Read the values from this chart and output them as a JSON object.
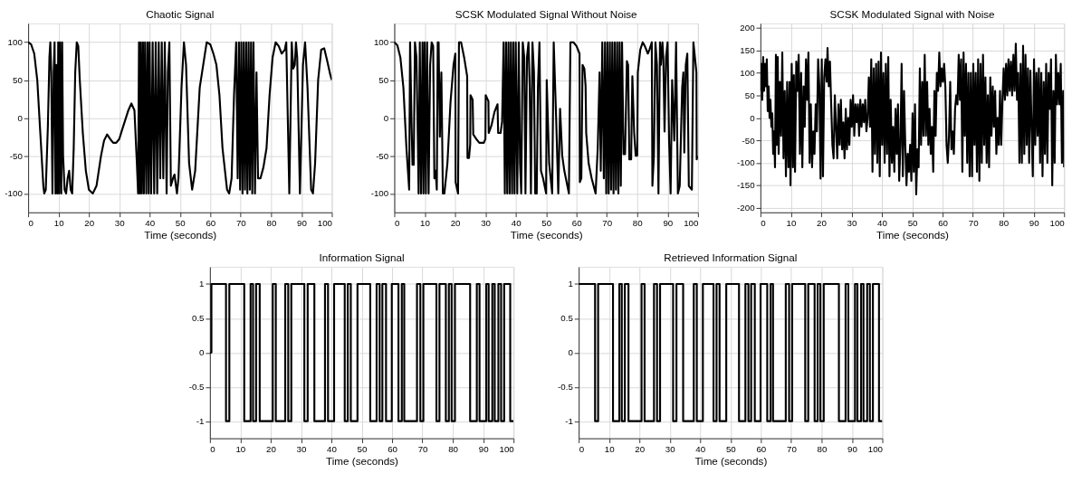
{
  "chart_data": [
    {
      "type": "line",
      "title": "Chaotic Signal",
      "xlabel": "Time (seconds)",
      "xlim": [
        0,
        100
      ],
      "xticks": [
        0,
        10,
        20,
        30,
        40,
        50,
        60,
        70,
        80,
        90,
        100
      ],
      "ylim": [
        -125,
        125
      ],
      "yticks": [
        -100,
        -50,
        0,
        50,
        100
      ],
      "grid": true,
      "line_style": "solid",
      "x": [
        0,
        1,
        2,
        3,
        4,
        5,
        5.3,
        5.8,
        6.5,
        7,
        7.3,
        7.6,
        8,
        8.4,
        8.7,
        9,
        9.3,
        9.6,
        9.9,
        10.2,
        10.5,
        10.9,
        11.2,
        11.5,
        12,
        12.5,
        13,
        13.5,
        14,
        14.5,
        15,
        15.5,
        16,
        16.5,
        17,
        18,
        19,
        20,
        21.3,
        22.5,
        24,
        25,
        26,
        27,
        28,
        29,
        30,
        31,
        33,
        34,
        35,
        35.8,
        36.2,
        36.5,
        36.8,
        37.1,
        37.4,
        37.8,
        38.1,
        38.5,
        38.9,
        39.3,
        39.7,
        40,
        40.5,
        41,
        41.5,
        42,
        42.5,
        43,
        43.5,
        44,
        44.5,
        45,
        45.6,
        46,
        46.5,
        47,
        47.7,
        48.2,
        49,
        49.5,
        50.5,
        51.3,
        52,
        53,
        54,
        55,
        56.5,
        58.8,
        60,
        61,
        62,
        63,
        64,
        65.5,
        66.2,
        67,
        67.8,
        68.5,
        69,
        69.4,
        69.8,
        70.2,
        70.6,
        71,
        71.4,
        71.8,
        72.2,
        72.6,
        73,
        73.4,
        73.8,
        74.2,
        74.7,
        75.2,
        75.7,
        76.5,
        77.5,
        78.5,
        79.5,
        80.5,
        81.5,
        82.5,
        83.5,
        84.5,
        85,
        85.5,
        86,
        86.8,
        87.3,
        87.8,
        88.2,
        88.6,
        89,
        89.5,
        90.5,
        91.2,
        92,
        93.2,
        93.8,
        94.5,
        95.5,
        96.5,
        97.5,
        98.5,
        99.5,
        100
      ],
      "series": [
        {
          "color": "#000000",
          "values": [
            100,
            97,
            85,
            50,
            -20,
            -90,
            -100,
            -95,
            -10,
            80,
            100,
            60,
            -100,
            60,
            100,
            -100,
            70,
            -100,
            100,
            -100,
            100,
            -100,
            100,
            -50,
            -95,
            -100,
            -80,
            -70,
            -95,
            -100,
            -40,
            60,
            100,
            95,
            50,
            -20,
            -70,
            -95,
            -100,
            -90,
            -50,
            -30,
            -22,
            -28,
            -33,
            -33,
            -28,
            -15,
            10,
            19,
            10,
            -60,
            -100,
            100,
            -100,
            100,
            -100,
            100,
            -100,
            100,
            -100,
            100,
            -100,
            100,
            -100,
            100,
            -100,
            100,
            -100,
            100,
            -80,
            100,
            -80,
            100,
            -100,
            60,
            100,
            -90,
            -80,
            -75,
            -100,
            -80,
            40,
            100,
            70,
            -60,
            -95,
            -70,
            40,
            100,
            97,
            85,
            70,
            30,
            -40,
            -95,
            -100,
            -80,
            30,
            100,
            -80,
            100,
            -95,
            100,
            -100,
            100,
            -95,
            100,
            -100,
            100,
            -95,
            100,
            -100,
            100,
            -100,
            60,
            -80,
            -80,
            -65,
            -40,
            30,
            80,
            100,
            95,
            85,
            90,
            100,
            0,
            -100,
            100,
            65,
            70,
            100,
            80,
            0,
            -100,
            70,
            100,
            40,
            -95,
            -100,
            -60,
            50,
            90,
            92,
            75,
            57,
            50
          ]
        }
      ]
    },
    {
      "type": "line",
      "title": "SCSK Modulated Signal Without Noise",
      "xlabel": "Time (seconds)",
      "xlim": [
        0,
        100
      ],
      "xticks": [
        0,
        10,
        20,
        30,
        40,
        50,
        60,
        70,
        80,
        90,
        100
      ],
      "ylim": [
        -125,
        125
      ],
      "yticks": [
        -100,
        -50,
        0,
        50,
        100
      ],
      "grid": true,
      "line_style": "solid",
      "x": [
        0,
        1,
        2,
        3,
        4,
        4.9,
        5.2,
        5.7,
        6,
        6.4,
        6.8,
        7.3,
        7.8,
        8,
        8.4,
        8.8,
        9.3,
        9.6,
        10,
        10.4,
        10.8,
        11.3,
        11.8,
        12.3,
        12.8,
        13.2,
        13.6,
        14,
        14.3,
        14.6,
        15,
        15.5,
        16,
        16.5,
        17.5,
        18.5,
        19.5,
        20.1,
        20.2,
        21,
        21.3,
        22,
        23,
        24,
        24.1,
        24.6,
        25,
        25.1,
        25.8,
        26,
        27,
        28,
        29.5,
        30,
        30.1,
        31,
        31.1,
        32,
        33,
        34,
        34.2,
        35,
        35.5,
        36,
        36.4,
        36.8,
        37.2,
        37.6,
        38,
        38.4,
        38.8,
        39.2,
        39.6,
        40,
        40.5,
        41,
        41.4,
        41.8,
        42.3,
        42.8,
        43.2,
        43.7,
        44.2,
        44.6,
        45,
        45.5,
        46,
        46.4,
        46.9,
        47.3,
        47.8,
        48.3,
        49,
        50,
        50.2,
        51,
        52,
        52.5,
        53.3,
        54,
        54.6,
        55.3,
        56,
        57,
        57.5,
        58,
        59,
        60,
        61,
        61.1,
        61.6,
        62,
        62.6,
        63,
        63.2,
        64,
        65,
        66.3,
        67,
        67.6,
        68,
        68.5,
        69,
        69.4,
        69.8,
        70.2,
        70.6,
        71,
        71.4,
        71.8,
        72.2,
        72.6,
        73,
        73.4,
        73.8,
        74.2,
        74.6,
        75,
        75.5,
        76,
        76.6,
        77,
        77.4,
        78,
        78.4,
        79,
        79.5,
        80,
        80.2,
        81,
        81.8,
        82.5,
        83.5,
        84,
        84.8,
        85,
        85.5,
        86,
        86.5,
        87,
        87.5,
        87.8,
        88.3,
        88.6,
        89,
        89.5,
        90,
        90.5,
        91,
        91.5,
        92.2,
        92.8,
        93.4,
        94,
        94.8,
        95.2,
        95.5,
        96,
        96.5,
        97,
        98,
        98.5,
        99.5,
        99.6,
        100
      ],
      "series": [
        {
          "color": "#000000",
          "values": [
            100,
            96,
            80,
            40,
            -40,
            -95,
            100,
            -10,
            -62,
            -62,
            100,
            80,
            -40,
            -100,
            100,
            -100,
            100,
            -100,
            100,
            -100,
            100,
            -100,
            70,
            100,
            95,
            -80,
            -70,
            -95,
            100,
            100,
            -25,
            60,
            -100,
            -100,
            -60,
            20,
            70,
            85,
            -85,
            -100,
            100,
            100,
            80,
            55,
            -53,
            -53,
            -35,
            30,
            24,
            -22,
            -28,
            -33,
            -33,
            -28,
            30,
            22,
            -20,
            -10,
            8,
            18,
            -20,
            -20,
            -5,
            100,
            -100,
            100,
            -100,
            100,
            -100,
            100,
            -100,
            100,
            -100,
            100,
            -100,
            100,
            -60,
            -100,
            100,
            80,
            -100,
            80,
            100,
            40,
            -100,
            100,
            60,
            -100,
            -100,
            40,
            100,
            -70,
            -80,
            -100,
            50,
            -60,
            -100,
            100,
            0,
            -100,
            12,
            -50,
            -70,
            -90,
            -100,
            100,
            100,
            95,
            85,
            -85,
            -80,
            70,
            65,
            42,
            -20,
            -60,
            -80,
            -100,
            -40,
            60,
            -70,
            100,
            -80,
            100,
            -100,
            100,
            -100,
            100,
            -95,
            100,
            -100,
            100,
            -95,
            100,
            -100,
            100,
            -90,
            100,
            -48,
            -48,
            75,
            70,
            -55,
            -55,
            55,
            -20,
            -50,
            -50,
            60,
            90,
            100,
            95,
            85,
            90,
            100,
            -90,
            -50,
            100,
            70,
            -100,
            100,
            70,
            100,
            80,
            -18,
            80,
            100,
            -30,
            -100,
            50,
            -30,
            100,
            -100,
            -90,
            40,
            60,
            -46,
            70,
            85,
            -90,
            -95,
            100,
            60,
            -55,
            -50
          ]
        }
      ]
    },
    {
      "type": "line",
      "title": "SCSK Modulated Signal with Noise",
      "xlabel": "Time (seconds)",
      "xlim": [
        0,
        100
      ],
      "xticks": [
        0,
        10,
        20,
        30,
        40,
        50,
        60,
        70,
        80,
        90,
        100
      ],
      "ylim": [
        -210,
        210
      ],
      "yticks": [
        -200,
        -150,
        -100,
        -50,
        0,
        50,
        100,
        150,
        200
      ],
      "grid": true,
      "line_style": "solid",
      "x": [
        0,
        0.3,
        0.6,
        0.9,
        1.2,
        1.5,
        1.8,
        2.1,
        2.4,
        2.7,
        3,
        3.3,
        3.6,
        3.9,
        4.2,
        4.5,
        4.8,
        5.1,
        5.4,
        5.7,
        6,
        6.4,
        6.8,
        7.2,
        7.6,
        8,
        8.4,
        8.8,
        9.2,
        9.6,
        9.9,
        10.3,
        10.7,
        11,
        11.4,
        11.8,
        12.2,
        12.6,
        13,
        13.4,
        13.8,
        14.2,
        14.6,
        15,
        15.4,
        15.8,
        16.2,
        16.6,
        17,
        17.4,
        17.8,
        18.2,
        18.6,
        19,
        19.4,
        19.8,
        20.2,
        20.6,
        21,
        21.4,
        21.8,
        22.1,
        22.5,
        22.9,
        23.3,
        23.7,
        24.1,
        24.5,
        24.9,
        25.3,
        25.7,
        26.1,
        26.5,
        26.9,
        27.3,
        27.7,
        28.1,
        28.5,
        28.9,
        29.3,
        29.7,
        30.1,
        30.5,
        30.9,
        31.3,
        31.7,
        32.1,
        32.5,
        32.9,
        33.3,
        33.7,
        34.1,
        34.5,
        34.9,
        35.3,
        35.7,
        36.1,
        36.5,
        36.9,
        37.3,
        37.7,
        38.1,
        38.5,
        38.9,
        39.3,
        39.7,
        40.1,
        40.5,
        40.9,
        41.3,
        41.7,
        42.1,
        42.5,
        42.9,
        43.3,
        43.7,
        44.1,
        44.5,
        44.9,
        45.3,
        45.7,
        46.1,
        46.5,
        46.9,
        47.3,
        47.7,
        48.1,
        48.5,
        48.9,
        49.3,
        49.7,
        50.1,
        50.5,
        50.9,
        51.3,
        51.7,
        52.1,
        52.5,
        52.9,
        53.3,
        53.7,
        54.1,
        54.5,
        54.9,
        55.3,
        55.7,
        56.1,
        56.5,
        56.9,
        57.3,
        57.7,
        58.1,
        58.5,
        58.9,
        59.3,
        59.7,
        60.1,
        60.5,
        60.9,
        61.3,
        61.7,
        62.1,
        62.5,
        62.9,
        63.3,
        63.7,
        64.1,
        64.5,
        64.9,
        65.3,
        65.7,
        66.1,
        66.5,
        66.9,
        67.3,
        67.7,
        68.1,
        68.5,
        68.9,
        69.3,
        69.7,
        70.1,
        70.5,
        70.9,
        71.3,
        71.7,
        72.1,
        72.5,
        72.9,
        73.3,
        73.7,
        74.1,
        74.5,
        74.9,
        75.3,
        75.7,
        76.1,
        76.5,
        76.9,
        77.3,
        77.7,
        78.1,
        78.5,
        78.9,
        79.3,
        79.7,
        80.1,
        80.5,
        80.9,
        81.3,
        81.7,
        82.1,
        82.5,
        82.9,
        83.3,
        83.7,
        84.1,
        84.5,
        84.9,
        85.3,
        85.7,
        86.1,
        86.5,
        86.9,
        87.3,
        87.7,
        88.1,
        88.5,
        88.9,
        89.3,
        89.7,
        90.1,
        90.5,
        90.9,
        91.3,
        91.7,
        92.1,
        92.5,
        92.9,
        93.3,
        93.7,
        94.1,
        94.5,
        94.9,
        95.3,
        95.7,
        96.1,
        96.5,
        96.9,
        97.3,
        97.7,
        98.1,
        98.5,
        98.9,
        99.3,
        99.7,
        100
      ],
      "series": [
        {
          "color": "#000000",
          "values": [
            60,
            120,
            40,
            135,
            60,
            120,
            70,
            130,
            15,
            70,
            0,
            40,
            -20,
            10,
            -80,
            -30,
            -110,
            140,
            -60,
            135,
            -80,
            80,
            -40,
            145,
            -90,
            60,
            -130,
            80,
            -110,
            80,
            -150,
            120,
            -110,
            95,
            -120,
            125,
            60,
            140,
            -80,
            100,
            -110,
            70,
            -20,
            130,
            40,
            145,
            -100,
            30,
            -110,
            -30,
            -80,
            30,
            -30,
            130,
            70,
            -135,
            130,
            -130,
            90,
            130,
            80,
            155,
            70,
            125,
            30,
            -60,
            -90,
            50,
            -20,
            -90,
            30,
            -60,
            40,
            -70,
            -10,
            -90,
            20,
            -70,
            0,
            -60,
            40,
            -20,
            50,
            -40,
            30,
            -10,
            30,
            -40,
            40,
            -20,
            30,
            -10,
            40,
            -30,
            0,
            90,
            -20,
            130,
            -120,
            110,
            -80,
            120,
            -100,
            125,
            -130,
            145,
            -60,
            100,
            -100,
            120,
            -80,
            135,
            -130,
            40,
            -100,
            -20,
            -120,
            20,
            -80,
            30,
            -140,
            -60,
            120,
            -130,
            60,
            -60,
            -150,
            -80,
            -120,
            -60,
            -140,
            10,
            -120,
            30,
            -170,
            -70,
            -110,
            110,
            -60,
            80,
            -40,
            140,
            -40,
            80,
            -60,
            20,
            -80,
            -20,
            -120,
            60,
            -40,
            100,
            60,
            145,
            70,
            110,
            80,
            120,
            70,
            -60,
            -100,
            -40,
            80,
            -70,
            -30,
            -80,
            20,
            50,
            30,
            140,
            40,
            130,
            -120,
            145,
            -40,
            120,
            -100,
            100,
            -130,
            100,
            -130,
            120,
            -60,
            100,
            -120,
            130,
            -140,
            120,
            -100,
            140,
            -60,
            90,
            -100,
            50,
            -110,
            90,
            -40,
            70,
            -20,
            60,
            -80,
            0,
            -60,
            60,
            -60,
            40,
            110,
            40,
            120,
            50,
            130,
            60,
            125,
            50,
            140,
            60,
            165,
            40,
            100,
            -100,
            120,
            -100,
            160,
            -80,
            140,
            -60,
            110,
            -100,
            105,
            -20,
            -130,
            130,
            -60,
            100,
            -40,
            110,
            -100,
            100,
            -130,
            80,
            -80,
            120,
            -100,
            100,
            20,
            130,
            -150,
            60,
            -100,
            140,
            30,
            100,
            30,
            120,
            -100,
            60,
            -110
          ]
        }
      ]
    },
    {
      "type": "step",
      "title": "Information Signal",
      "xlabel": "Time (seconds)",
      "xlim": [
        0,
        100
      ],
      "xticks": [
        0,
        10,
        20,
        30,
        40,
        50,
        60,
        70,
        80,
        90,
        100
      ],
      "ylim": [
        -1.25,
        1.25
      ],
      "yticks": [
        -1,
        -0.5,
        0,
        0.5,
        1
      ],
      "grid": true,
      "line_style": "solid",
      "x": [
        0,
        0.5,
        5.3,
        6.4,
        11.3,
        13.4,
        14.2,
        15.2,
        16.4,
        20.7,
        21.7,
        24.8,
        25.8,
        26.8,
        31.1,
        32.2,
        34.4,
        37.9,
        38.9,
        40.9,
        44.4,
        45.4,
        46.4,
        48.6,
        52.8,
        54.9,
        55.9,
        56.8,
        58.0,
        59.9,
        62.1,
        63.2,
        64.0,
        68.2,
        69.3,
        70.3,
        74.6,
        75.6,
        77.7,
        78.7,
        79.6,
        80.7,
        85.7,
        87.9,
        88.8,
        91.0,
        91.8,
        93.0,
        93.8,
        95.0,
        95.9,
        96.9,
        98.9,
        100
      ],
      "series": [
        {
          "color": "#000000",
          "values": [
            0,
            1,
            -1,
            1,
            -1,
            1,
            -1,
            1,
            -1,
            1,
            -1,
            1,
            -1,
            1,
            -1,
            1,
            -1,
            1,
            -1,
            1,
            -1,
            1,
            -1,
            1,
            -1,
            1,
            -1,
            1,
            -1,
            1,
            -1,
            1,
            -1,
            1,
            -1,
            1,
            -1,
            1,
            -1,
            1,
            -1,
            1,
            -1,
            1,
            -1,
            1,
            -1,
            1,
            -1,
            1,
            -1,
            1,
            -1,
            -1
          ]
        }
      ]
    },
    {
      "type": "step",
      "title": "Retrieved Information Signal",
      "xlabel": "Time (seconds)",
      "xlim": [
        0,
        100
      ],
      "xticks": [
        0,
        10,
        20,
        30,
        40,
        50,
        60,
        70,
        80,
        90,
        100
      ],
      "ylim": [
        -1.25,
        1.25
      ],
      "yticks": [
        -1,
        -0.5,
        0,
        0.5,
        1
      ],
      "grid": true,
      "line_style": "solid",
      "x": [
        0,
        5.4,
        6.4,
        11.3,
        13.4,
        14.2,
        15.2,
        16.4,
        20.7,
        21.7,
        24.8,
        25.8,
        26.8,
        31.1,
        32.2,
        34.4,
        37.9,
        38.9,
        40.9,
        44.4,
        45.4,
        46.4,
        48.6,
        52.8,
        54.9,
        55.9,
        56.8,
        58.0,
        59.9,
        62.1,
        63.2,
        64.0,
        68.2,
        69.3,
        70.3,
        74.6,
        75.6,
        77.7,
        78.7,
        79.6,
        80.7,
        85.7,
        87.9,
        88.8,
        91.0,
        91.8,
        93.0,
        93.8,
        95.0,
        95.9,
        96.9,
        98.9,
        100
      ],
      "series": [
        {
          "color": "#000000",
          "values": [
            1,
            -1,
            1,
            -1,
            1,
            -1,
            1,
            -1,
            1,
            -1,
            1,
            -1,
            1,
            -1,
            1,
            -1,
            1,
            -1,
            1,
            -1,
            1,
            -1,
            1,
            -1,
            1,
            -1,
            1,
            -1,
            1,
            -1,
            1,
            -1,
            1,
            -1,
            1,
            -1,
            1,
            -1,
            1,
            -1,
            1,
            -1,
            1,
            -1,
            1,
            -1,
            1,
            -1,
            1,
            -1,
            1,
            -1,
            -1
          ]
        }
      ]
    }
  ]
}
